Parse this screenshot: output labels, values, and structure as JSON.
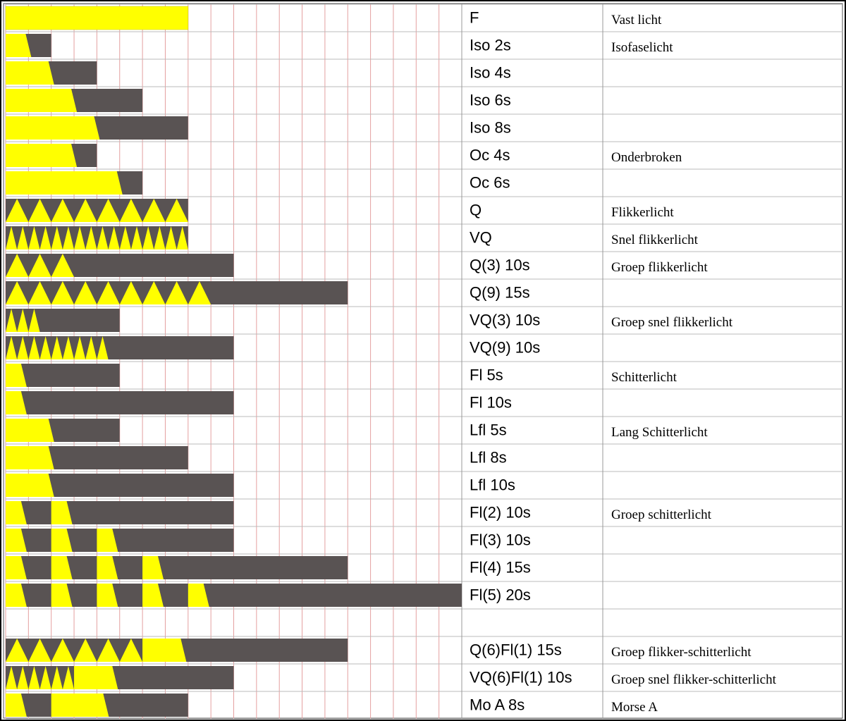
{
  "rows": [
    {
      "label": "F",
      "description": "Vast licht"
    },
    {
      "label": "Iso 2s",
      "description": "Isofaselicht"
    },
    {
      "label": "Iso 4s"
    },
    {
      "label": "Iso 6s"
    },
    {
      "label": "Iso 8s"
    },
    {
      "label": "Oc 4s",
      "description": "Onderbroken"
    },
    {
      "label": "Oc 6s"
    },
    {
      "label": "Q",
      "description": "Flikkerlicht"
    },
    {
      "label": "VQ",
      "description": "Snel flikkerlicht"
    },
    {
      "label": "Q(3) 10s",
      "description": "Groep flikkerlicht"
    },
    {
      "label": "Q(9) 15s"
    },
    {
      "label": "VQ(3) 10s",
      "description": "Groep snel flikkerlicht"
    },
    {
      "label": "VQ(9) 10s"
    },
    {
      "label": "Fl 5s",
      "description": "Schitterlicht"
    },
    {
      "label": "Fl 10s"
    },
    {
      "label": "Lfl 5s",
      "description": "Lang Schitterlicht"
    },
    {
      "label": "Lfl 8s"
    },
    {
      "label": "Lfl 10s"
    },
    {
      "label": "Fl(2) 10s",
      "description": "Groep schitterlicht"
    },
    {
      "label": "Fl(3) 10s"
    },
    {
      "label": "Fl(4) 15s"
    },
    {
      "label": "Fl(5) 20s"
    },
    {
      "label": "Q(6)Fl(1) 15s",
      "description": "Groep flikker-schitterlicht"
    },
    {
      "label": "VQ(6)Fl(1) 10s",
      "description": "Groep snel flikker-schitterlicht"
    },
    {
      "label": "Mo A 8s",
      "description": "Morse A"
    }
  ]
}
